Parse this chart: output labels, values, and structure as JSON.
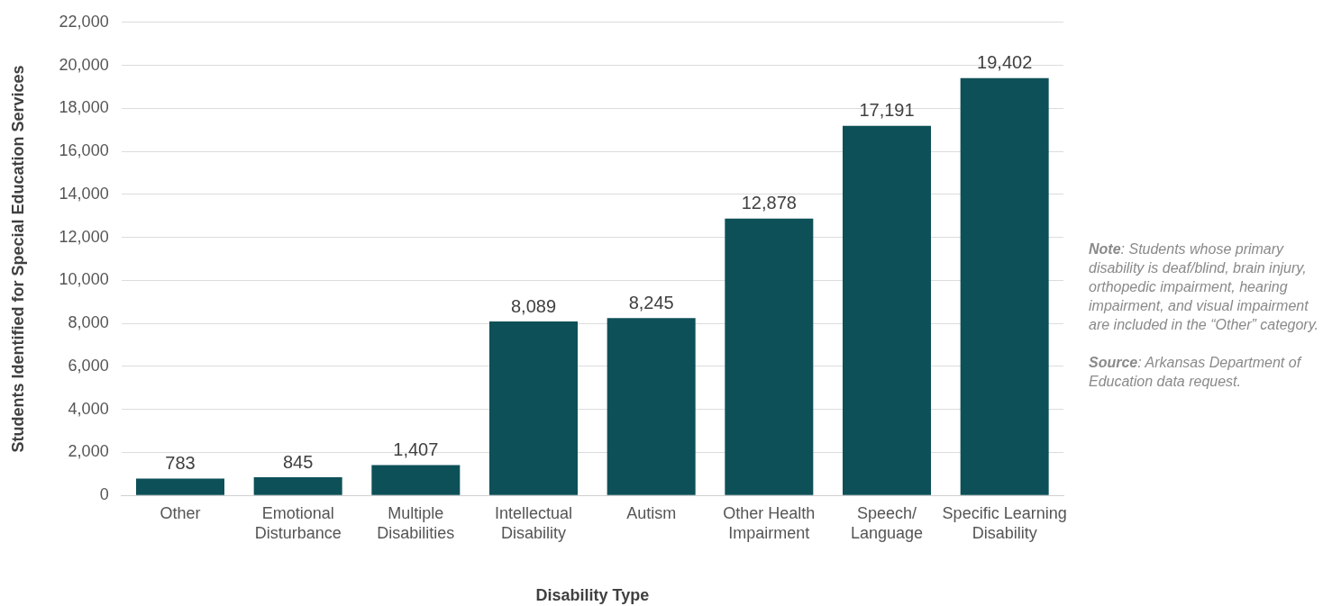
{
  "chart_data": {
    "type": "bar",
    "xlabel": "Disability Type",
    "ylabel": "Students Identified for Special Education Services",
    "categories": [
      "Other",
      "Emotional Disturbance",
      "Multiple Disabilities",
      "Intellectual Disability",
      "Autism",
      "Other Health Impairment",
      "Speech/ Language",
      "Specific Learning Disability"
    ],
    "values": [
      783,
      845,
      1407,
      8089,
      8245,
      12878,
      17191,
      19402
    ],
    "color": "#0e5058",
    "ylim": [
      0,
      22000
    ],
    "yticks": [
      {
        "value": 0,
        "label": "0"
      },
      {
        "value": 2000,
        "label": "2,000"
      },
      {
        "value": 4000,
        "label": "4,000"
      },
      {
        "value": 6000,
        "label": "6,000"
      },
      {
        "value": 8000,
        "label": "8,000"
      },
      {
        "value": 10000,
        "label": "10,000"
      },
      {
        "value": 12000,
        "label": "12,000"
      },
      {
        "value": 14000,
        "label": "14,000"
      },
      {
        "value": 16000,
        "label": "16,000"
      },
      {
        "value": 18000,
        "label": "18,000"
      },
      {
        "value": 20000,
        "label": "20,000"
      },
      {
        "value": 22000,
        "label": "22,000"
      }
    ],
    "grid": "y",
    "legend": false,
    "value_labels": [
      "783",
      "845",
      "1,407",
      "8,089",
      "8,245",
      "12,878",
      "17,191",
      "19,402"
    ],
    "annotations": [
      "Note: Students whose primary disability is deaf/blind, brain injury, orthopedic impairment, hearing impairment, and visual impairment are included in the “Other” category.",
      "Source: Arkansas Department of Education data request."
    ]
  }
}
